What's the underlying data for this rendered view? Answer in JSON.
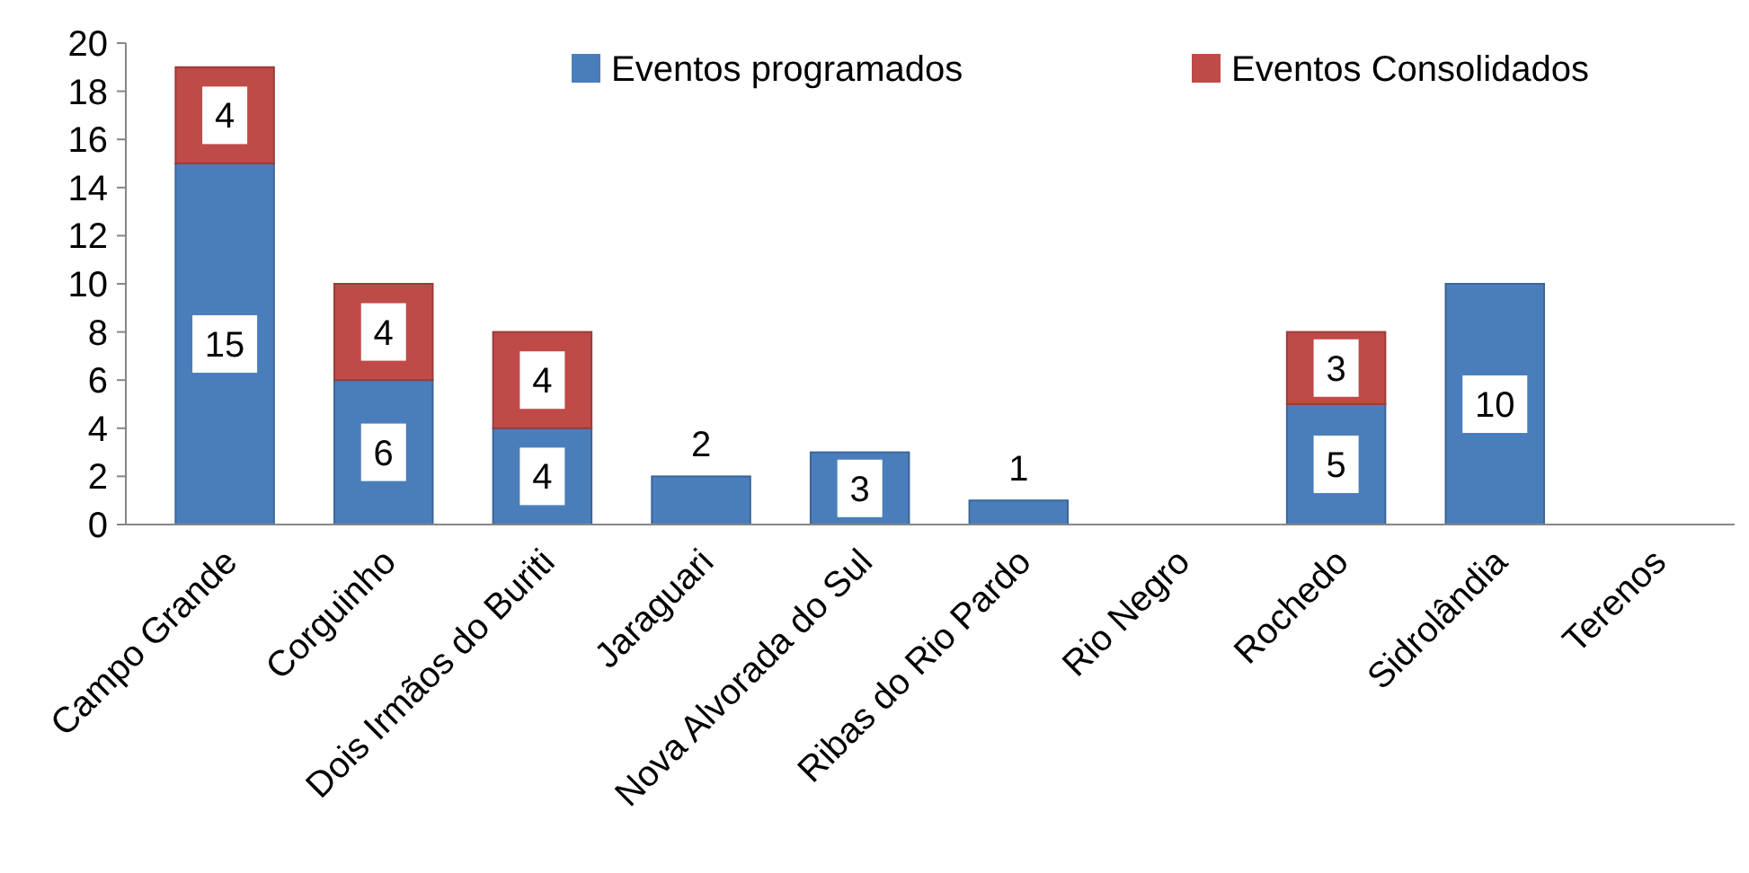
{
  "chart_data": {
    "type": "bar",
    "stacked": true,
    "categories": [
      "Campo Grande",
      "Corguinho",
      "Dois Irmãos do Buriti",
      "Jaraguari",
      "Nova Alvorada do Sul",
      "Ribas do Rio Pardo",
      "Rio Negro",
      "Rochedo",
      "Sidrolândia",
      "Terenos"
    ],
    "series": [
      {
        "name": "Eventos programados",
        "color": "#4a7ebb",
        "values": [
          15,
          6,
          4,
          2,
          3,
          1,
          null,
          5,
          10,
          null
        ]
      },
      {
        "name": "Eventos Consolidados",
        "color": "#be4b48",
        "values": [
          4,
          4,
          4,
          null,
          null,
          null,
          null,
          3,
          null,
          null
        ]
      }
    ],
    "ylim": [
      0,
      20
    ],
    "yticks": [
      0,
      2,
      4,
      6,
      8,
      10,
      12,
      14,
      16,
      18,
      20
    ],
    "grid": false,
    "legend": "top right",
    "data_labels": true
  }
}
